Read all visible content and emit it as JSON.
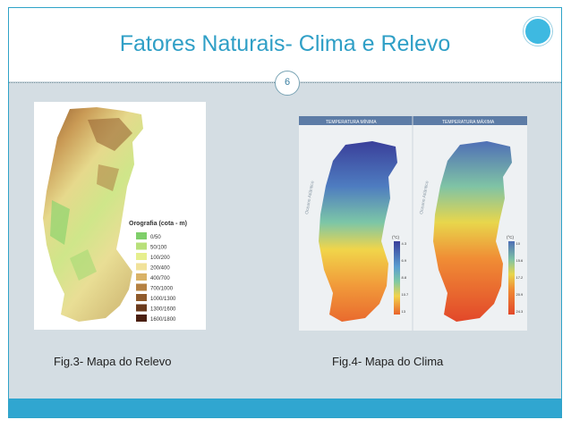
{
  "slide": {
    "title": "Fatores Naturais- Clima e Relevo",
    "page_number": "6"
  },
  "relief_map": {
    "legend_title": "Orografia (cota - m)",
    "legend_items": [
      {
        "label": "0/50",
        "color": "#7fcf6a"
      },
      {
        "label": "50/100",
        "color": "#b8e07a"
      },
      {
        "label": "100/200",
        "color": "#e6ef8e"
      },
      {
        "label": "200/400",
        "color": "#f1e29a"
      },
      {
        "label": "400/700",
        "color": "#d9b267"
      },
      {
        "label": "700/1000",
        "color": "#b58142"
      },
      {
        "label": "1000/1300",
        "color": "#8f5a2c"
      },
      {
        "label": "1300/1600",
        "color": "#6b3a1c"
      },
      {
        "label": "1600/1800",
        "color": "#4a1f10"
      }
    ]
  },
  "climate_map": {
    "panel_left_title": "TEMPERATURA MÍNIMA",
    "panel_right_title": "TEMPERATURA MÁXIMA",
    "unit_label": "(°C)",
    "ocean_label": "Oceano Atlântico",
    "left_scale": [
      "4.3",
      "6.9",
      "8.8",
      "10.7",
      "13"
    ],
    "right_scale": [
      "10",
      "15.6",
      "17.2",
      "20.9",
      "24.3"
    ]
  },
  "captions": {
    "fig3": "Fig.3- Mapa do Relevo",
    "fig4": "Fig.4- Mapa do Clima"
  }
}
